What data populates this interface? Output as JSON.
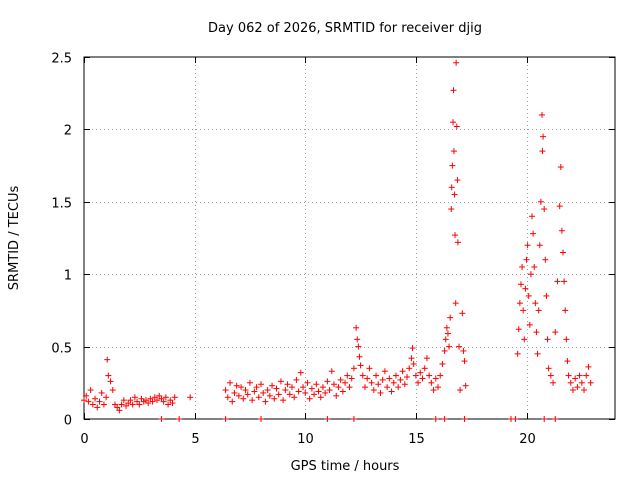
{
  "chart_data": {
    "type": "scatter",
    "title": "Day 062 of 2026, SRMTID for receiver djig",
    "xlabel": "GPS time / hours",
    "ylabel": "SRMTID / TECUs",
    "xlim": [
      0,
      24
    ],
    "ylim": [
      0,
      2.5
    ],
    "xticks": [
      0,
      5,
      10,
      15,
      20
    ],
    "xtick_labels": [
      "0",
      "5",
      "10",
      "15",
      "20"
    ],
    "yticks": [
      0,
      0.5,
      1,
      1.5,
      2,
      2.5
    ],
    "ytick_labels": [
      "0",
      "0.5",
      "1",
      "1.5",
      "2",
      "2.5"
    ],
    "grid": true,
    "marker": "+",
    "series": [
      {
        "name": "SRMTID",
        "color": "#ff0000",
        "points": [
          [
            0.0,
            0.13
          ],
          [
            0.1,
            0.16
          ],
          [
            0.2,
            0.12
          ],
          [
            0.3,
            0.2
          ],
          [
            0.4,
            0.1
          ],
          [
            0.5,
            0.14
          ],
          [
            0.6,
            0.08
          ],
          [
            0.7,
            0.12
          ],
          [
            0.8,
            0.18
          ],
          [
            0.9,
            0.1
          ],
          [
            1.0,
            0.15
          ],
          [
            1.05,
            0.41
          ],
          [
            1.1,
            0.3
          ],
          [
            1.2,
            0.26
          ],
          [
            1.3,
            0.2
          ],
          [
            1.4,
            0.1
          ],
          [
            1.5,
            0.08
          ],
          [
            1.6,
            0.06
          ],
          [
            1.7,
            0.1
          ],
          [
            1.8,
            0.13
          ],
          [
            1.9,
            0.09
          ],
          [
            2.0,
            0.11
          ],
          [
            2.1,
            0.13
          ],
          [
            2.2,
            0.1
          ],
          [
            2.3,
            0.15
          ],
          [
            2.4,
            0.12
          ],
          [
            2.5,
            0.1
          ],
          [
            2.6,
            0.14
          ],
          [
            2.7,
            0.12
          ],
          [
            2.8,
            0.13
          ],
          [
            2.9,
            0.11
          ],
          [
            3.0,
            0.14
          ],
          [
            3.1,
            0.12
          ],
          [
            3.2,
            0.15
          ],
          [
            3.3,
            0.13
          ],
          [
            3.4,
            0.16
          ],
          [
            3.5,
            0.14
          ],
          [
            3.6,
            0.12
          ],
          [
            3.7,
            0.15
          ],
          [
            3.8,
            0.1
          ],
          [
            3.9,
            0.13
          ],
          [
            4.0,
            0.11
          ],
          [
            4.1,
            0.15
          ],
          [
            4.8,
            0.15
          ],
          [
            6.4,
            0.2
          ],
          [
            6.5,
            0.15
          ],
          [
            6.6,
            0.25
          ],
          [
            6.7,
            0.12
          ],
          [
            6.8,
            0.18
          ],
          [
            6.9,
            0.23
          ],
          [
            7.0,
            0.16
          ],
          [
            7.1,
            0.22
          ],
          [
            7.2,
            0.14
          ],
          [
            7.3,
            0.2
          ],
          [
            7.4,
            0.17
          ],
          [
            7.5,
            0.25
          ],
          [
            7.6,
            0.13
          ],
          [
            7.7,
            0.19
          ],
          [
            7.8,
            0.22
          ],
          [
            7.9,
            0.15
          ],
          [
            8.0,
            0.24
          ],
          [
            8.1,
            0.18
          ],
          [
            8.2,
            0.12
          ],
          [
            8.3,
            0.2
          ],
          [
            8.4,
            0.16
          ],
          [
            8.5,
            0.23
          ],
          [
            8.6,
            0.14
          ],
          [
            8.7,
            0.21
          ],
          [
            8.8,
            0.17
          ],
          [
            8.9,
            0.26
          ],
          [
            9.0,
            0.13
          ],
          [
            9.1,
            0.2
          ],
          [
            9.2,
            0.24
          ],
          [
            9.3,
            0.17
          ],
          [
            9.4,
            0.22
          ],
          [
            9.5,
            0.15
          ],
          [
            9.6,
            0.27
          ],
          [
            9.7,
            0.19
          ],
          [
            9.8,
            0.32
          ],
          [
            9.9,
            0.22
          ],
          [
            10.0,
            0.18
          ],
          [
            10.1,
            0.25
          ],
          [
            10.2,
            0.14
          ],
          [
            10.3,
            0.21
          ],
          [
            10.4,
            0.17
          ],
          [
            10.5,
            0.24
          ],
          [
            10.6,
            0.19
          ],
          [
            10.7,
            0.15
          ],
          [
            10.8,
            0.22
          ],
          [
            10.9,
            0.18
          ],
          [
            11.0,
            0.26
          ],
          [
            11.1,
            0.2
          ],
          [
            11.2,
            0.33
          ],
          [
            11.3,
            0.24
          ],
          [
            11.4,
            0.16
          ],
          [
            11.5,
            0.22
          ],
          [
            11.6,
            0.27
          ],
          [
            11.7,
            0.19
          ],
          [
            11.8,
            0.25
          ],
          [
            11.9,
            0.3
          ],
          [
            12.0,
            0.22
          ],
          [
            12.1,
            0.28
          ],
          [
            12.2,
            0.35
          ],
          [
            12.3,
            0.63
          ],
          [
            12.35,
            0.55
          ],
          [
            12.4,
            0.5
          ],
          [
            12.45,
            0.43
          ],
          [
            12.5,
            0.37
          ],
          [
            12.6,
            0.3
          ],
          [
            12.7,
            0.22
          ],
          [
            12.8,
            0.28
          ],
          [
            12.9,
            0.35
          ],
          [
            13.0,
            0.25
          ],
          [
            13.1,
            0.2
          ],
          [
            13.2,
            0.3
          ],
          [
            13.3,
            0.24
          ],
          [
            13.4,
            0.18
          ],
          [
            13.5,
            0.27
          ],
          [
            13.6,
            0.33
          ],
          [
            13.7,
            0.22
          ],
          [
            13.8,
            0.28
          ],
          [
            13.9,
            0.19
          ],
          [
            14.0,
            0.25
          ],
          [
            14.1,
            0.3
          ],
          [
            14.2,
            0.22
          ],
          [
            14.3,
            0.27
          ],
          [
            14.4,
            0.33
          ],
          [
            14.5,
            0.24
          ],
          [
            14.6,
            0.29
          ],
          [
            14.7,
            0.35
          ],
          [
            14.8,
            0.42
          ],
          [
            14.85,
            0.49
          ],
          [
            14.9,
            0.38
          ],
          [
            15.0,
            0.3
          ],
          [
            15.1,
            0.25
          ],
          [
            15.2,
            0.32
          ],
          [
            15.3,
            0.28
          ],
          [
            15.4,
            0.35
          ],
          [
            15.5,
            0.42
          ],
          [
            15.6,
            0.3
          ],
          [
            15.7,
            0.25
          ],
          [
            15.8,
            0.2
          ],
          [
            15.9,
            0.28
          ],
          [
            16.0,
            0.22
          ],
          [
            16.1,
            0.3
          ],
          [
            16.2,
            0.38
          ],
          [
            16.3,
            0.47
          ],
          [
            16.35,
            0.55
          ],
          [
            16.4,
            0.63
          ],
          [
            16.45,
            0.59
          ],
          [
            16.5,
            0.5
          ],
          [
            16.55,
            0.7
          ],
          [
            16.6,
            1.45
          ],
          [
            16.62,
            1.6
          ],
          [
            16.65,
            1.75
          ],
          [
            16.68,
            2.05
          ],
          [
            16.7,
            2.27
          ],
          [
            16.72,
            1.85
          ],
          [
            16.75,
            1.55
          ],
          [
            16.77,
            1.27
          ],
          [
            16.8,
            0.8
          ],
          [
            16.82,
            2.46
          ],
          [
            16.85,
            2.02
          ],
          [
            16.88,
            1.65
          ],
          [
            16.9,
            1.22
          ],
          [
            16.95,
            0.5
          ],
          [
            17.0,
            0.2
          ],
          [
            17.1,
            0.73
          ],
          [
            17.15,
            0.47
          ],
          [
            17.2,
            0.4
          ],
          [
            17.25,
            0.23
          ],
          [
            19.6,
            0.45
          ],
          [
            19.65,
            0.62
          ],
          [
            19.7,
            0.8
          ],
          [
            19.75,
            0.93
          ],
          [
            19.8,
            1.05
          ],
          [
            19.85,
            0.75
          ],
          [
            19.9,
            0.55
          ],
          [
            19.95,
            0.9
          ],
          [
            20.0,
            1.1
          ],
          [
            20.05,
            1.2
          ],
          [
            20.1,
            0.85
          ],
          [
            20.15,
            0.65
          ],
          [
            20.2,
            1.0
          ],
          [
            20.25,
            1.4
          ],
          [
            20.3,
            1.28
          ],
          [
            20.35,
            1.05
          ],
          [
            20.4,
            0.8
          ],
          [
            20.45,
            0.6
          ],
          [
            20.5,
            0.45
          ],
          [
            20.55,
            0.75
          ],
          [
            20.6,
            1.2
          ],
          [
            20.65,
            1.5
          ],
          [
            20.7,
            2.1
          ],
          [
            20.72,
            1.85
          ],
          [
            20.75,
            1.95
          ],
          [
            20.8,
            1.45
          ],
          [
            20.85,
            1.1
          ],
          [
            20.9,
            0.85
          ],
          [
            20.95,
            0.55
          ],
          [
            21.0,
            0.35
          ],
          [
            21.1,
            0.3
          ],
          [
            21.2,
            0.25
          ],
          [
            21.3,
            0.6
          ],
          [
            21.4,
            0.95
          ],
          [
            21.5,
            1.47
          ],
          [
            21.55,
            1.74
          ],
          [
            21.6,
            1.3
          ],
          [
            21.65,
            1.15
          ],
          [
            21.7,
            0.95
          ],
          [
            21.75,
            0.75
          ],
          [
            21.8,
            0.55
          ],
          [
            21.85,
            0.4
          ],
          [
            21.9,
            0.3
          ],
          [
            22.0,
            0.25
          ],
          [
            22.1,
            0.2
          ],
          [
            22.2,
            0.28
          ],
          [
            22.3,
            0.22
          ],
          [
            22.4,
            0.3
          ],
          [
            22.5,
            0.25
          ],
          [
            22.6,
            0.2
          ],
          [
            22.7,
            0.3
          ],
          [
            22.8,
            0.36
          ],
          [
            22.9,
            0.25
          ],
          [
            3.5,
            0.0
          ],
          [
            4.3,
            0.0
          ],
          [
            6.4,
            0.0
          ],
          [
            8.0,
            0.0
          ],
          [
            11.0,
            0.0
          ],
          [
            12.2,
            0.0
          ],
          [
            15.9,
            0.0
          ],
          [
            16.3,
            0.0
          ],
          [
            17.2,
            0.0
          ],
          [
            19.3,
            0.0
          ],
          [
            19.5,
            0.0
          ],
          [
            20.8,
            0.0
          ],
          [
            21.3,
            0.0
          ]
        ]
      }
    ]
  }
}
